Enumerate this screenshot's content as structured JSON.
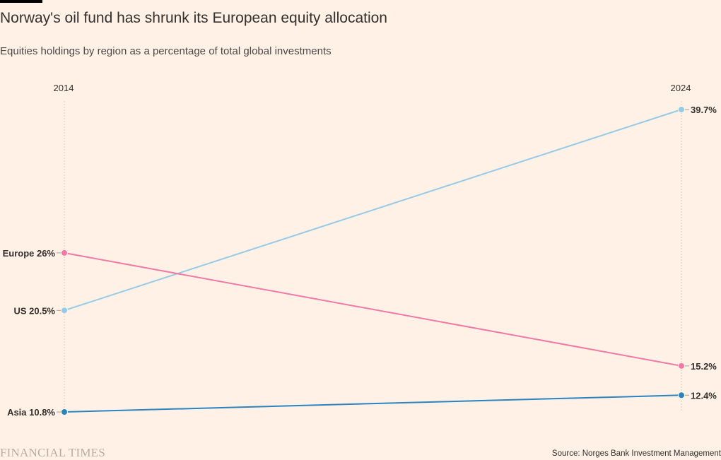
{
  "header": {
    "title": "Norway's oil fund has shrunk its European equity allocation",
    "subtitle": "Equities holdings by region as a percentage of total global investments"
  },
  "footer": {
    "brand": "FINANCIAL TIMES",
    "source": "Source: Norges Bank Investment Management"
  },
  "chart_data": {
    "type": "line",
    "title": "Norway's oil fund has shrunk its European equity allocation",
    "subtitle": "Equities holdings by region as a percentage of total global investments",
    "x": [
      "2014",
      "2024"
    ],
    "ylim": [
      10.8,
      39.7
    ],
    "grid": false,
    "series": [
      {
        "name": "US",
        "color": "#96cbe8",
        "values": [
          20.5,
          39.7
        ],
        "start_label": "US 20.5%",
        "end_label": "39.7%"
      },
      {
        "name": "Europe",
        "color": "#ef7aa7",
        "values": [
          26,
          15.2
        ],
        "start_label": "Europe 26%",
        "end_label": "15.2%"
      },
      {
        "name": "Asia",
        "color": "#2a84c0",
        "values": [
          10.8,
          12.4
        ],
        "start_label": "Asia 10.8%",
        "end_label": "12.4%"
      }
    ]
  }
}
